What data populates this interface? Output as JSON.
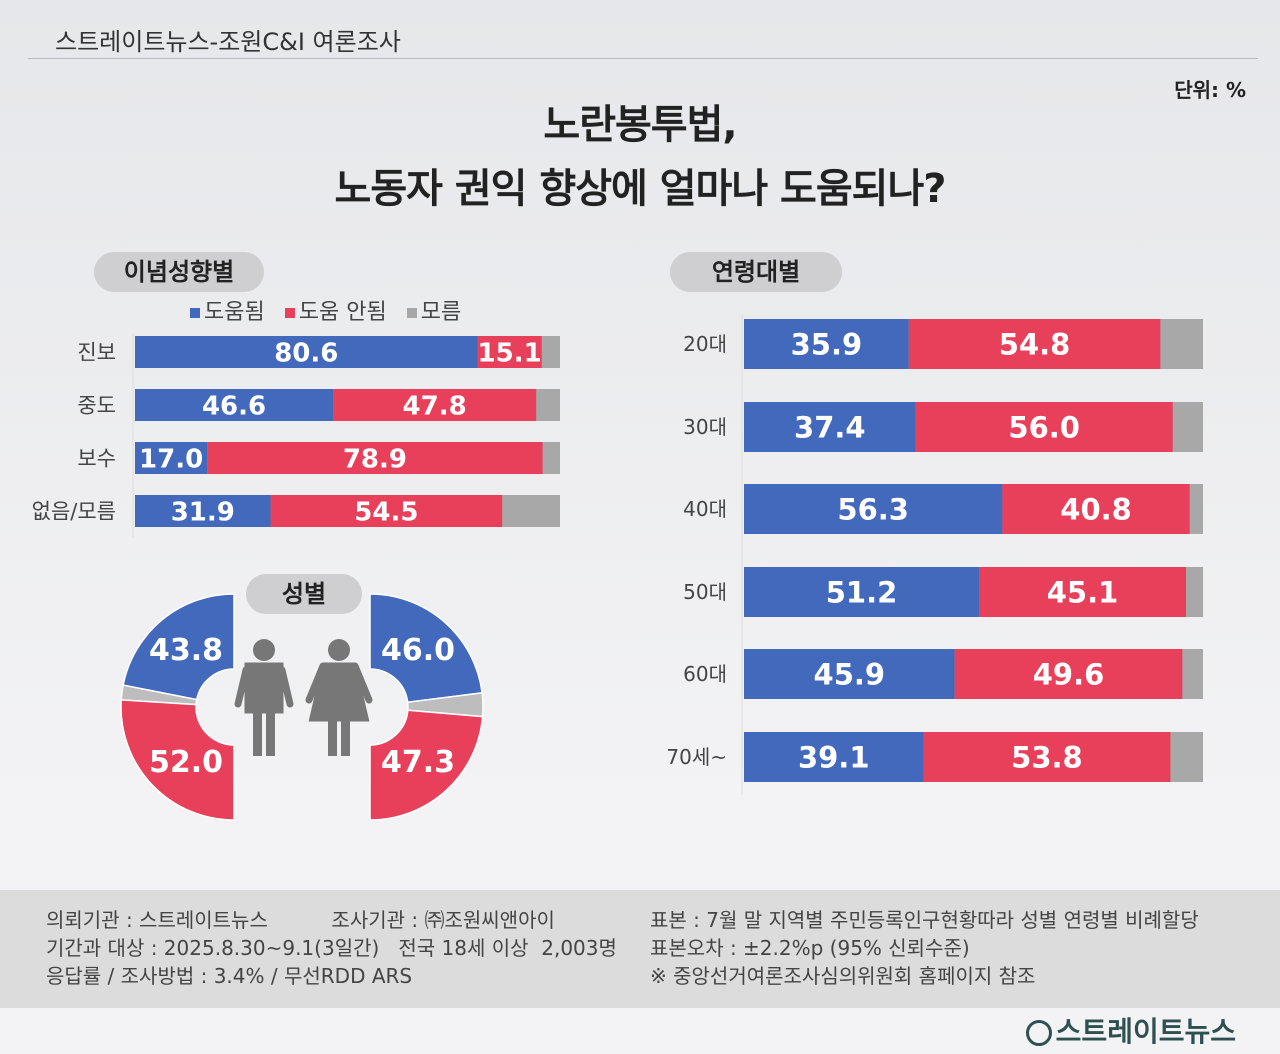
{
  "header": {
    "source": "스트레이트뉴스-조원C&I 여론조사",
    "unit": "단위: %",
    "title_line1": "노란봉투법,",
    "title_line2": "노동자 권익 향상에 얼마나  도움되나?"
  },
  "colors": {
    "help": "#4369bd",
    "nohelp": "#e8405a",
    "unknown": "#a8a8a8"
  },
  "chart_data": [
    {
      "type": "bar",
      "stacked": true,
      "orientation": "horizontal",
      "title": "이념성향별",
      "legend": [
        "도움됨",
        "도움 안됨",
        "모름"
      ],
      "legend_placement": "top",
      "categories": [
        "진보",
        "중도",
        "보수",
        "없음/모름"
      ],
      "series": [
        {
          "name": "도움됨",
          "values": [
            80.6,
            46.6,
            17.0,
            31.9
          ]
        },
        {
          "name": "도움 안됨",
          "values": [
            15.1,
            47.8,
            78.9,
            54.5
          ]
        }
      ]
    },
    {
      "type": "pie",
      "subtype": "half-donut",
      "title": "성별",
      "categories": [
        "남성",
        "여성"
      ],
      "series": [
        {
          "name": "도움됨",
          "values": [
            43.8,
            46.0
          ]
        },
        {
          "name": "도움 안됨",
          "values": [
            52.0,
            47.3
          ]
        }
      ]
    },
    {
      "type": "bar",
      "stacked": true,
      "orientation": "horizontal",
      "title": "연령대별",
      "categories": [
        "20대",
        "30대",
        "40대",
        "50대",
        "60대",
        "70세~"
      ],
      "series": [
        {
          "name": "도움됨",
          "values": [
            35.9,
            37.4,
            56.3,
            51.2,
            45.9,
            39.1
          ]
        },
        {
          "name": "도움 안됨",
          "values": [
            54.8,
            56.0,
            40.8,
            45.1,
            49.6,
            53.8
          ]
        }
      ]
    }
  ],
  "footer": {
    "left": [
      "의뢰기관 : 스트레이트뉴스          조사기관 : ㈜조원씨앤아이",
      "기간과 대상 : 2025.8.30~9.1(3일간)   전국 18세 이상  2,003명",
      "응답률 / 조사방법 : 3.4% / 무선RDD ARS"
    ],
    "right": [
      "표본 : 7월 말 지역별 주민등록인구현황따라 성별 연령별 비례할당",
      "표본오차 : ±2.2%p (95% 신뢰수준)",
      "※ 중앙선거여론조사심의위원회 홈페이지 참조"
    ],
    "logo": "스트레이트뉴스"
  }
}
